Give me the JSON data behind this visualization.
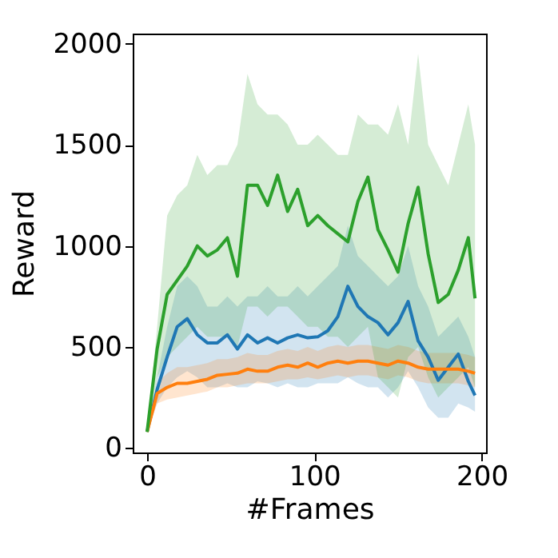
{
  "chart_data": {
    "type": "line",
    "xlabel": "#Frames",
    "ylabel": "Reward",
    "x": [
      0,
      6,
      12,
      18,
      24,
      30,
      36,
      42,
      48,
      54,
      60,
      66,
      72,
      78,
      84,
      90,
      96,
      102,
      108,
      114,
      120,
      126,
      132,
      138,
      144,
      150,
      156,
      162,
      168,
      174,
      180,
      186,
      192,
      196
    ],
    "xlim": [
      -8.6,
      202.6
    ],
    "xticks": [
      0,
      100,
      200
    ],
    "ylim": [
      -22,
      2050
    ],
    "yticks": [
      0,
      500,
      1000,
      1500,
      2000
    ],
    "grid": false,
    "line_style": "solid",
    "marker": "none",
    "series": [
      {
        "color": "#1f77b4",
        "values": [
          80,
          290,
          450,
          600,
          640,
          560,
          520,
          520,
          560,
          490,
          560,
          520,
          545,
          520,
          545,
          560,
          545,
          550,
          580,
          650,
          800,
          700,
          650,
          620,
          560,
          620,
          725,
          530,
          450,
          335,
          400,
          465,
          330,
          260
        ],
        "lower": [
          80,
          220,
          300,
          350,
          380,
          350,
          300,
          300,
          320,
          300,
          300,
          330,
          320,
          300,
          320,
          300,
          300,
          320,
          320,
          320,
          350,
          320,
          300,
          300,
          250,
          300,
          380,
          300,
          200,
          150,
          150,
          220,
          200,
          180
        ],
        "upper": [
          80,
          350,
          600,
          800,
          850,
          800,
          700,
          700,
          750,
          700,
          750,
          750,
          800,
          750,
          750,
          800,
          750,
          800,
          850,
          900,
          1100,
          950,
          900,
          850,
          800,
          850,
          1000,
          800,
          700,
          550,
          600,
          650,
          550,
          450
        ]
      },
      {
        "color": "#ff7f0e",
        "values": [
          80,
          270,
          300,
          320,
          320,
          330,
          340,
          360,
          365,
          370,
          390,
          380,
          380,
          400,
          410,
          400,
          420,
          400,
          420,
          430,
          420,
          430,
          430,
          420,
          410,
          430,
          420,
          400,
          390,
          390,
          390,
          390,
          380,
          370
        ],
        "lower": [
          80,
          220,
          240,
          250,
          260,
          270,
          280,
          300,
          300,
          310,
          320,
          320,
          320,
          330,
          340,
          340,
          350,
          340,
          350,
          360,
          350,
          360,
          360,
          350,
          340,
          360,
          350,
          330,
          320,
          320,
          320,
          320,
          310,
          300
        ],
        "upper": [
          80,
          320,
          370,
          400,
          400,
          410,
          420,
          440,
          440,
          450,
          470,
          460,
          460,
          480,
          490,
          480,
          500,
          480,
          500,
          510,
          500,
          510,
          510,
          500,
          490,
          510,
          500,
          480,
          470,
          470,
          470,
          470,
          460,
          450
        ]
      },
      {
        "color": "#2ca02c",
        "values": [
          80,
          490,
          760,
          830,
          900,
          1000,
          950,
          980,
          1040,
          850,
          1300,
          1300,
          1200,
          1350,
          1170,
          1280,
          1100,
          1150,
          1100,
          1060,
          1020,
          1220,
          1340,
          1080,
          980,
          870,
          1110,
          1290,
          960,
          720,
          760,
          880,
          1040,
          740
        ],
        "lower": [
          80,
          350,
          450,
          500,
          550,
          600,
          550,
          550,
          550,
          500,
          700,
          700,
          650,
          700,
          700,
          650,
          600,
          600,
          550,
          550,
          500,
          550,
          600,
          350,
          300,
          250,
          450,
          500,
          350,
          250,
          300,
          350,
          400,
          300
        ],
        "upper": [
          80,
          600,
          1150,
          1250,
          1300,
          1450,
          1350,
          1400,
          1400,
          1500,
          1850,
          1700,
          1650,
          1650,
          1600,
          1500,
          1500,
          1550,
          1500,
          1450,
          1450,
          1650,
          1600,
          1600,
          1550,
          1700,
          1500,
          1950,
          1500,
          1400,
          1300,
          1500,
          1700,
          1500
        ]
      }
    ]
  }
}
